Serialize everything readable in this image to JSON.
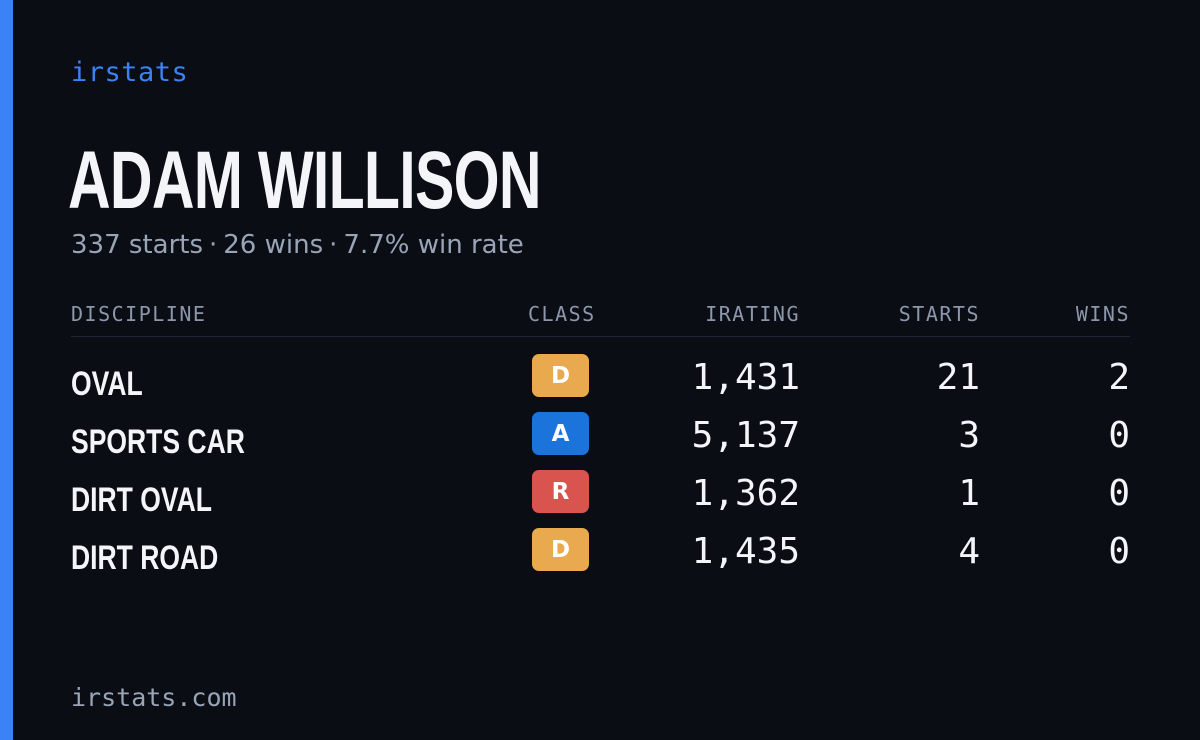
{
  "brand": "irstats",
  "driver": {
    "name": "ADAM WILLISON",
    "starts": "337 starts",
    "wins": "26 wins",
    "win_rate": "7.7% win rate",
    "separator": "·"
  },
  "table": {
    "headers": {
      "discipline": "DISCIPLINE",
      "class": "CLASS",
      "irating": "IRATING",
      "starts": "STARTS",
      "wins": "WINS"
    },
    "rows": [
      {
        "discipline": "OVAL",
        "class": "D",
        "class_color": "#e8a94f",
        "irating": "1,431",
        "starts": "21",
        "wins": "2"
      },
      {
        "discipline": "SPORTS CAR",
        "class": "A",
        "class_color": "#1a74db",
        "irating": "5,137",
        "starts": "3",
        "wins": "0"
      },
      {
        "discipline": "DIRT OVAL",
        "class": "R",
        "class_color": "#d9534f",
        "irating": "1,362",
        "starts": "1",
        "wins": "0"
      },
      {
        "discipline": "DIRT ROAD",
        "class": "D",
        "class_color": "#e8a94f",
        "irating": "1,435",
        "starts": "4",
        "wins": "0"
      }
    ]
  },
  "footer": "irstats.com",
  "colors": {
    "accent": "#3b82f6",
    "background": "#0a0d14"
  }
}
